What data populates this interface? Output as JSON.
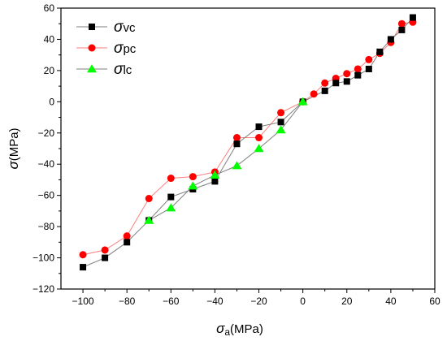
{
  "chart_data": {
    "type": "line",
    "title": "",
    "xlabel": {
      "symbol": "σ",
      "sub": "a",
      "unit": "(MPa)"
    },
    "ylabel": {
      "symbol": "σ",
      "unit": "(MPa)"
    },
    "xlim": [
      -110,
      60
    ],
    "ylim": [
      -120,
      60
    ],
    "xticks": [
      -100,
      -80,
      -60,
      -40,
      -20,
      0,
      20,
      40,
      60
    ],
    "yticks": [
      -120,
      -100,
      -80,
      -60,
      -40,
      -20,
      0,
      20,
      40,
      60
    ],
    "xtick_labels": [
      "−100",
      "−80",
      "−60",
      "−40",
      "−20",
      "0",
      "20",
      "40",
      "60"
    ],
    "ytick_labels": [
      "−120",
      "−100",
      "−80",
      "−60",
      "−40",
      "−20",
      "0",
      "20",
      "40",
      "60"
    ],
    "grid": false,
    "legend_position": "top-left",
    "series": [
      {
        "name": "σvc",
        "symbol": "σ",
        "sub": "vc",
        "marker": "square",
        "marker_color": "#000000",
        "line_color": "#7f7f7f",
        "x": [
          -100,
          -90,
          -80,
          -70,
          -60,
          -50,
          -40,
          -30,
          -20,
          -10,
          0,
          10,
          15,
          20,
          25,
          30,
          35,
          40,
          45,
          50
        ],
        "y": [
          -106,
          -100,
          -90,
          -76,
          -61,
          -56,
          -51,
          -27,
          -16,
          -13,
          0,
          7,
          12,
          13,
          17,
          21,
          32,
          40,
          46,
          54
        ]
      },
      {
        "name": "σpc",
        "symbol": "σ",
        "sub": "pc",
        "marker": "circle",
        "marker_color": "#ff0000",
        "line_color": "#ff7f7f",
        "x": [
          -100,
          -90,
          -80,
          -70,
          -60,
          -50,
          -40,
          -30,
          -20,
          -10,
          0,
          5,
          10,
          15,
          20,
          25,
          30,
          35,
          40,
          45,
          50
        ],
        "y": [
          -98,
          -95,
          -86,
          -62,
          -49,
          -48,
          -45,
          -23,
          -23,
          -7,
          0,
          5,
          12,
          15,
          18,
          21,
          27,
          31,
          38,
          50,
          51
        ]
      },
      {
        "name": "σlc",
        "symbol": "σ",
        "sub": "lc",
        "marker": "triangle",
        "marker_color": "#00ff00",
        "line_color": "#7f7f7f",
        "x": [
          -70,
          -60,
          -50,
          -40,
          -30,
          -20,
          -10,
          0
        ],
        "y": [
          -76,
          -68,
          -54,
          -47,
          -41,
          -30,
          -18,
          0
        ]
      }
    ]
  }
}
